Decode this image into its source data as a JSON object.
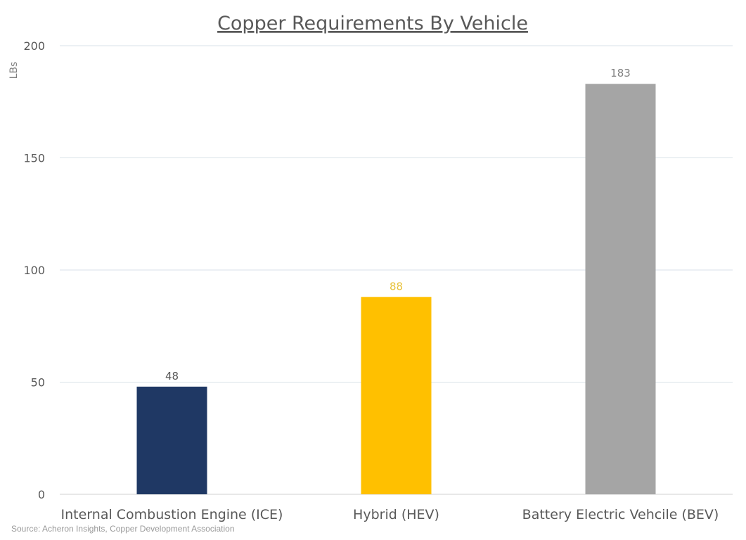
{
  "chart_data": {
    "type": "bar",
    "title": "Copper Requirements By Vehicle",
    "ylabel": "LBs",
    "xlabel": "",
    "categories": [
      "Internal Combustion Engine (ICE)",
      "Hybrid (HEV)",
      "Battery Electric Vehcile (BEV)"
    ],
    "values": [
      48,
      88,
      183
    ],
    "data_labels": [
      "48",
      "88",
      "183"
    ],
    "colors": [
      "#1f3864",
      "#ffc000",
      "#a5a5a5"
    ],
    "label_colors": [
      "#595959",
      "#e8c23a",
      "#7f7f7f"
    ],
    "ylim": [
      0,
      200
    ],
    "yticks": [
      0,
      50,
      100,
      150,
      200
    ],
    "ytick_labels": [
      "0",
      "50",
      "100",
      "150",
      "200"
    ],
    "grid": true,
    "legend": "none"
  },
  "source": "Source: Acheron Insights, Copper Development Association"
}
